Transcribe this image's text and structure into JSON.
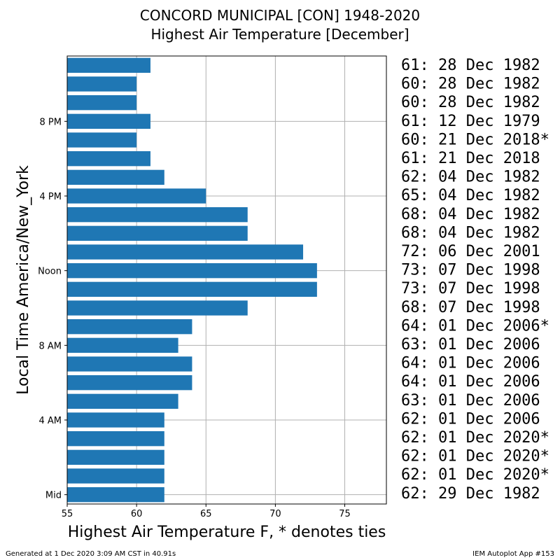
{
  "chart_data": {
    "type": "bar",
    "orientation": "horizontal",
    "title_lines": [
      "CONCORD MUNICIPAL [CON] 1948-2020",
      "Highest Air Temperature [December]"
    ],
    "xlabel": "Highest Air Temperature F, * denotes ties",
    "ylabel": "Local Time America/New_York",
    "xlim": [
      55,
      78
    ],
    "ylim": [
      -0.5,
      23.5
    ],
    "grid": true,
    "bar_color": "#1f77b4",
    "xticks": [
      55,
      60,
      65,
      70,
      75
    ],
    "yticks": [
      {
        "hour": 0,
        "label": "Mid"
      },
      {
        "hour": 4,
        "label": "4 AM"
      },
      {
        "hour": 8,
        "label": "8 AM"
      },
      {
        "hour": 12,
        "label": "Noon"
      },
      {
        "hour": 16,
        "label": "4 PM"
      },
      {
        "hour": 20,
        "label": "8 PM"
      }
    ],
    "hours": [
      0,
      1,
      2,
      3,
      4,
      5,
      6,
      7,
      8,
      9,
      10,
      11,
      12,
      13,
      14,
      15,
      16,
      17,
      18,
      19,
      20,
      21,
      22,
      23
    ],
    "values": [
      62,
      62,
      62,
      62,
      62,
      63,
      64,
      64,
      63,
      64,
      68,
      73,
      73,
      72,
      68,
      68,
      65,
      62,
      61,
      60,
      61,
      60,
      60,
      61
    ],
    "annotations": [
      "61: 28 Dec 1982",
      "60: 28 Dec 1982",
      "60: 28 Dec 1982",
      "61: 12 Dec 1979",
      "60: 21 Dec 2018*",
      "61: 21 Dec 2018",
      "62: 04 Dec 1982",
      "65: 04 Dec 1982",
      "68: 04 Dec 1982",
      "68: 04 Dec 1982",
      "72: 06 Dec 2001",
      "73: 07 Dec 1998",
      "73: 07 Dec 1998",
      "68: 07 Dec 1998",
      "64: 01 Dec 2006*",
      "63: 01 Dec 2006",
      "64: 01 Dec 2006",
      "64: 01 Dec 2006",
      "63: 01 Dec 2006",
      "62: 01 Dec 2006",
      "62: 01 Dec 2020*",
      "62: 01 Dec 2020*",
      "62: 01 Dec 2020*",
      "62: 29 Dec 1982"
    ]
  },
  "footer": {
    "left": "Generated at 1 Dec 2020 3:09 AM CST in 40.91s",
    "right": "IEM Autoplot App #153"
  }
}
